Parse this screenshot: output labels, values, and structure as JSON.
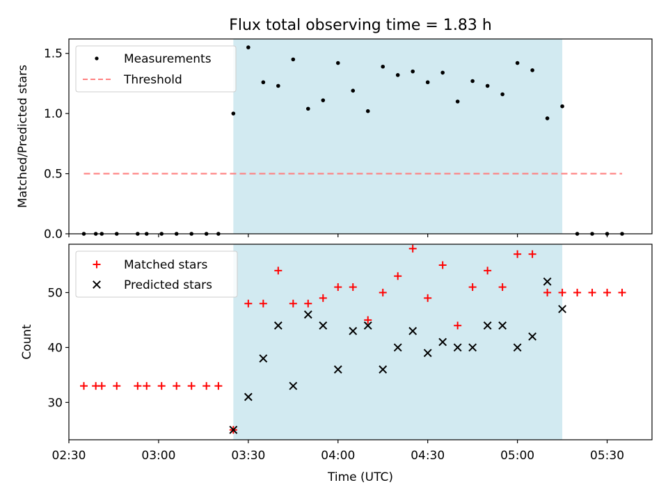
{
  "title": "Flux total observing time = 1.83 h",
  "xlabel": "Time (UTC)",
  "colors": {
    "span": "#add8e6",
    "threshold": "#ff7f7f",
    "measurements": "#000000",
    "matched": "#ff0000",
    "predicted": "#000000"
  },
  "chart_data": [
    {
      "type": "scatter",
      "ylabel": "Matched/Predicted stars",
      "ylim": [
        0,
        1.62
      ],
      "yticks": [
        0.0,
        0.5,
        1.0,
        1.5
      ],
      "ytick_labels": [
        "0.0",
        "0.5",
        "1.0",
        "1.5"
      ],
      "legend": {
        "placement": "top-left",
        "entries": [
          "Measurements",
          "Threshold"
        ]
      },
      "shaded_span": {
        "start": "03:25",
        "end": "05:15"
      },
      "threshold": {
        "name": "Threshold",
        "value": 0.5,
        "x_start": "02:35",
        "x_end": "05:35"
      },
      "series": [
        {
          "name": "Measurements",
          "marker": "dot",
          "x": [
            "02:35",
            "02:39",
            "02:41",
            "02:46",
            "02:53",
            "02:56",
            "03:01",
            "03:06",
            "03:11",
            "03:16",
            "03:20",
            "03:25",
            "03:30",
            "03:35",
            "03:40",
            "03:45",
            "03:50",
            "03:55",
            "04:00",
            "04:05",
            "04:10",
            "04:15",
            "04:20",
            "04:25",
            "04:30",
            "04:35",
            "04:40",
            "04:45",
            "04:50",
            "04:55",
            "05:00",
            "05:05",
            "05:10",
            "05:15",
            "05:20",
            "05:25",
            "05:30",
            "05:35"
          ],
          "y": [
            0,
            0,
            0,
            0,
            0,
            0,
            0,
            0,
            0,
            0,
            0,
            1.0,
            1.55,
            1.26,
            1.23,
            1.45,
            1.04,
            1.11,
            1.42,
            1.19,
            1.02,
            1.39,
            1.32,
            1.35,
            1.26,
            1.34,
            1.1,
            1.27,
            1.23,
            1.16,
            1.42,
            1.36,
            0.96,
            1.06,
            0,
            0,
            0,
            0
          ]
        }
      ]
    },
    {
      "type": "scatter",
      "ylabel": "Count",
      "ylim": [
        23.2,
        58.8
      ],
      "yticks": [
        30,
        40,
        50
      ],
      "ytick_labels": [
        "30",
        "40",
        "50"
      ],
      "legend": {
        "placement": "top-left",
        "entries": [
          "Matched stars",
          "Predicted stars"
        ]
      },
      "shaded_span": {
        "start": "03:25",
        "end": "05:15"
      },
      "series": [
        {
          "name": "Matched stars",
          "marker": "plus",
          "x": [
            "02:35",
            "02:39",
            "02:41",
            "02:46",
            "02:53",
            "02:56",
            "03:01",
            "03:06",
            "03:11",
            "03:16",
            "03:20",
            "03:25",
            "03:30",
            "03:35",
            "03:40",
            "03:45",
            "03:50",
            "03:55",
            "04:00",
            "04:05",
            "04:10",
            "04:15",
            "04:20",
            "04:25",
            "04:30",
            "04:35",
            "04:40",
            "04:45",
            "04:50",
            "04:55",
            "05:00",
            "05:05",
            "05:10",
            "05:15",
            "05:20",
            "05:25",
            "05:30",
            "05:35"
          ],
          "y": [
            33,
            33,
            33,
            33,
            33,
            33,
            33,
            33,
            33,
            33,
            33,
            25,
            48,
            48,
            54,
            48,
            48,
            49,
            51,
            51,
            45,
            50,
            53,
            58,
            49,
            55,
            44,
            51,
            54,
            51,
            57,
            57,
            50,
            50,
            50,
            50,
            50,
            50
          ]
        },
        {
          "name": "Predicted stars",
          "marker": "x",
          "x": [
            "03:25",
            "03:30",
            "03:35",
            "03:40",
            "03:45",
            "03:50",
            "03:55",
            "04:00",
            "04:05",
            "04:10",
            "04:15",
            "04:20",
            "04:25",
            "04:30",
            "04:35",
            "04:40",
            "04:45",
            "04:50",
            "04:55",
            "05:00",
            "05:05",
            "05:10",
            "05:15"
          ],
          "y": [
            25,
            31,
            38,
            44,
            33,
            46,
            44,
            36,
            43,
            44,
            36,
            40,
            43,
            39,
            41,
            40,
            40,
            44,
            44,
            40,
            42,
            52,
            47
          ]
        }
      ]
    }
  ],
  "xaxis": {
    "range": [
      "02:30",
      "05:45"
    ],
    "ticks": [
      "02:30",
      "03:00",
      "03:30",
      "04:00",
      "04:30",
      "05:00",
      "05:30"
    ],
    "tick_labels": [
      "02:30",
      "03:00",
      "03:30",
      "04:00",
      "04:30",
      "05:00",
      "05:30"
    ]
  }
}
